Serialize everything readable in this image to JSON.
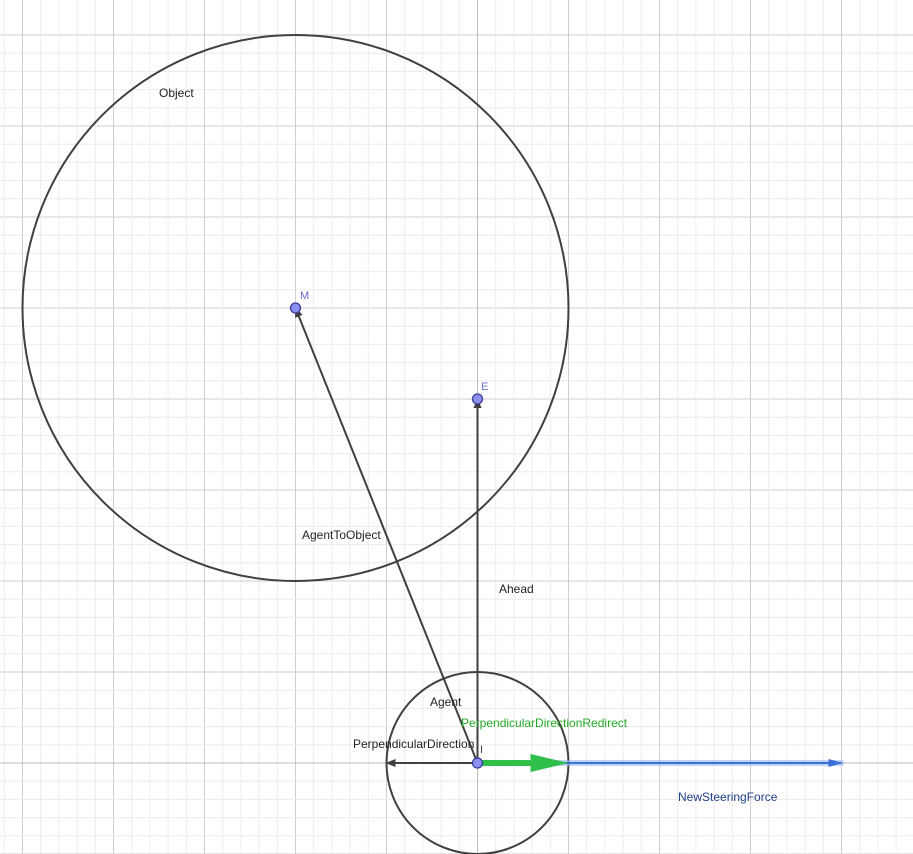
{
  "colors": {
    "grid_minor": "#ececec",
    "grid_major": "#cfcfcf",
    "axis": "#bdbdbd",
    "stroke": "#404040",
    "point_fill": "#8a8ff0",
    "point_stroke": "#3c3c9a",
    "point_label": "#6a6ad0",
    "green_vector": "#2fbf4a",
    "green_label": "#22aa22",
    "blue_vector": "#3a6fd8",
    "blue_glow": "#9ab8f0",
    "blue_label": "#1f3f8a"
  },
  "labels": {
    "object": "Object",
    "agent": "Agent",
    "ahead": "Ahead",
    "agent_to_object": "AgentToObject",
    "perpendicular_direction": "PerpendicularDirection",
    "perpendicular_direction_redirect": "PerpendicularDirectionRedirect",
    "new_steering_force": "NewSteeringForce"
  },
  "points": {
    "M": {
      "label": "M",
      "x": -2,
      "y": 5
    },
    "E": {
      "label": "E",
      "x": 0,
      "y": 4
    },
    "I": {
      "label": "I",
      "x": 0,
      "y": 0
    }
  },
  "circles": {
    "object": {
      "center": [
        -2,
        5
      ],
      "radius": 3
    },
    "agent": {
      "center": [
        0,
        0
      ],
      "radius": 1
    }
  },
  "vectors": {
    "ahead": {
      "from": [
        0,
        0
      ],
      "to": [
        0,
        4
      ]
    },
    "agent_to_object": {
      "from": [
        0,
        0
      ],
      "to": [
        -2,
        5
      ]
    },
    "perpendicular_direction": {
      "from": [
        0,
        0
      ],
      "to": [
        -1,
        0
      ]
    },
    "perpendicular_direction_redirect": {
      "from": [
        0,
        0
      ],
      "to": [
        1,
        0
      ]
    },
    "new_steering_force": {
      "from": [
        0,
        0
      ],
      "to": [
        4,
        0
      ]
    }
  }
}
